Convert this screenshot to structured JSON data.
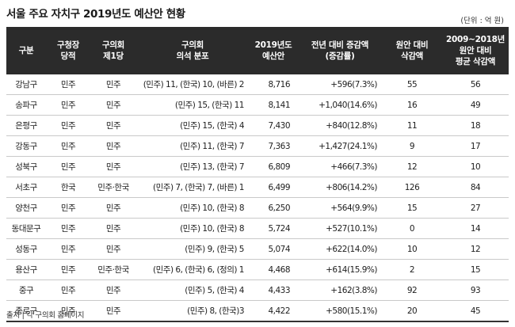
{
  "title": "서울 주요 자치구 2019년도 예산안 현황",
  "unit": "(단위 : 억 원)",
  "table": {
    "headers": [
      {
        "lines": [
          "구분"
        ]
      },
      {
        "lines": [
          "구청장",
          "당적"
        ]
      },
      {
        "lines": [
          "구의회",
          "제1당"
        ]
      },
      {
        "lines": [
          "구의회",
          "의석 분포"
        ]
      },
      {
        "lines": [
          "2019년도",
          "예산안"
        ]
      },
      {
        "lines": [
          "전년 대비 증감액",
          "(증감률)"
        ]
      },
      {
        "lines": [
          "원안 대비",
          "삭감액"
        ]
      },
      {
        "lines": [
          "2009~2018년",
          "원안 대비",
          "평균 삭감액"
        ]
      }
    ],
    "rows": [
      [
        "강남구",
        "민주",
        "민주",
        "(민주) 11, (한국) 10, (바른) 2",
        "8,716",
        "+596(7.3%)",
        "55",
        "56"
      ],
      [
        "송파구",
        "민주",
        "민주",
        "(민주) 15, (한국) 11",
        "8,141",
        "+1,040(14.6%)",
        "16",
        "49"
      ],
      [
        "은평구",
        "민주",
        "민주",
        "(민주) 15, (한국) 4",
        "7,430",
        "+840(12.8%)",
        "11",
        "18"
      ],
      [
        "강동구",
        "민주",
        "민주",
        "(민주) 11, (한국) 7",
        "7,363",
        "+1,427(24.1%)",
        "9",
        "17"
      ],
      [
        "성북구",
        "민주",
        "민주",
        "(민주) 13, (한국) 7",
        "6,809",
        "+466(7.3%)",
        "12",
        "10"
      ],
      [
        "서초구",
        "한국",
        "민주·한국",
        "(민주) 7, (한국) 7, (바른) 1",
        "6,499",
        "+806(14.2%)",
        "126",
        "84"
      ],
      [
        "양천구",
        "민주",
        "민주",
        "(민주) 10, (한국) 8",
        "6,250",
        "+564(9.9%)",
        "15",
        "27"
      ],
      [
        "동대문구",
        "민주",
        "민주",
        "(민주) 10, (한국) 8",
        "5,724",
        "+527(10.1%)",
        "0",
        "14"
      ],
      [
        "성동구",
        "민주",
        "민주",
        "(민주) 9, (한국) 5",
        "5,074",
        "+622(14.0%)",
        "10",
        "12"
      ],
      [
        "용산구",
        "민주",
        "민주·한국",
        "(민주) 6, (한국) 6, (정의) 1",
        "4,468",
        "+614(15.9%)",
        "2",
        "15"
      ],
      [
        "중구",
        "민주",
        "민주",
        "(민주) 5, (한국) 4",
        "4,433",
        "+162(3.8%)",
        "92",
        "93"
      ],
      [
        "종로구",
        "민주",
        "민주",
        "(민주) 8, (한국)3",
        "4,422",
        "+580(15.1%)",
        "20",
        "45"
      ]
    ]
  },
  "source": "출처 | 각 구의회 홈페이지"
}
